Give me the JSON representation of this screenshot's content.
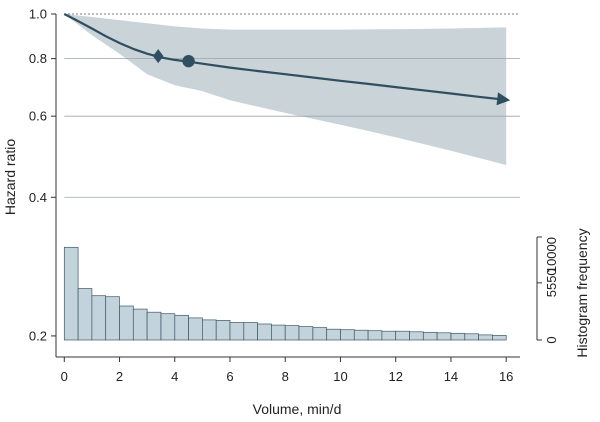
{
  "colors": {
    "ci_band": "#c9d3d8",
    "curve": "#2f4e5f",
    "marker": "#2f4e5f",
    "hist_fill": "#c3d3dc",
    "hist_stroke": "#3e5866",
    "gridline": "#9aa4aa",
    "axis": "#333333",
    "reference_line": "#555555"
  },
  "chart_data": {
    "type": "line",
    "xlabel": "Volume, min/d",
    "ylabel": "Hazard ratio",
    "y2label": "Histogram frequency",
    "xlim": [
      -0.3,
      16.5
    ],
    "ylim": [
      0.18,
      1.0
    ],
    "y_scale": "log",
    "x_ticks": [
      0,
      2,
      4,
      6,
      8,
      10,
      12,
      14,
      16
    ],
    "y_ticks": [
      0.2,
      0.4,
      0.6,
      0.8,
      1.0
    ],
    "y_tick_labels": [
      "0.2",
      "0.4",
      "0.6",
      "0.8",
      "1.0"
    ],
    "y2_ticks": [
      0,
      5550,
      10000
    ],
    "y2_tick_labels": [
      "0",
      "5550",
      "10000"
    ],
    "gridlines": true,
    "reference_line_y": 1.0,
    "curve": {
      "x": [
        0,
        0.5,
        1,
        1.5,
        2,
        2.5,
        3,
        3.5,
        4,
        4.5,
        5,
        6,
        7,
        8,
        9,
        10,
        11,
        12,
        13,
        14,
        15,
        16
      ],
      "y": [
        1.0,
        0.965,
        0.93,
        0.895,
        0.865,
        0.84,
        0.82,
        0.805,
        0.795,
        0.788,
        0.78,
        0.765,
        0.752,
        0.74,
        0.728,
        0.716,
        0.705,
        0.694,
        0.683,
        0.672,
        0.661,
        0.651
      ]
    },
    "ci_upper": {
      "x": [
        0,
        1,
        2,
        3,
        4,
        5,
        6,
        8,
        10,
        12,
        14,
        16
      ],
      "y": [
        1.0,
        0.985,
        0.97,
        0.955,
        0.94,
        0.93,
        0.925,
        0.925,
        0.925,
        0.927,
        0.93,
        0.935
      ]
    },
    "ci_lower": {
      "x": [
        0,
        1,
        2,
        3,
        4,
        5,
        6,
        8,
        10,
        12,
        14,
        16
      ],
      "y": [
        1.0,
        0.9,
        0.82,
        0.74,
        0.7,
        0.68,
        0.65,
        0.61,
        0.575,
        0.54,
        0.505,
        0.47
      ]
    },
    "markers": [
      {
        "shape": "diamond",
        "x": 3.4,
        "y": 0.81
      },
      {
        "shape": "circle",
        "x": 4.5,
        "y": 0.79
      }
    ],
    "histogram": {
      "bin_width": 0.5,
      "bin_starts": [
        0,
        0.5,
        1,
        1.5,
        2,
        2.5,
        3,
        3.5,
        4,
        4.5,
        5,
        5.5,
        6,
        6.5,
        7,
        7.5,
        8,
        8.5,
        9,
        9.5,
        10,
        10.5,
        11,
        11.5,
        12,
        12.5,
        13,
        13.5,
        14,
        14.5,
        15,
        15.5
      ],
      "frequency": [
        9000,
        5000,
        4300,
        4200,
        3300,
        3000,
        2700,
        2550,
        2400,
        2150,
        1950,
        1900,
        1700,
        1700,
        1550,
        1450,
        1400,
        1300,
        1200,
        1050,
        1000,
        950,
        900,
        850,
        850,
        800,
        750,
        700,
        650,
        600,
        500,
        450
      ]
    }
  }
}
